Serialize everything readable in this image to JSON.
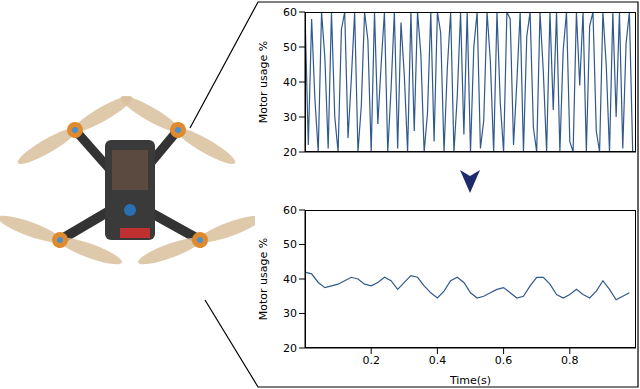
{
  "chart_data": [
    {
      "type": "line",
      "ylabel": "Motor usage %",
      "color": "#30598c",
      "x": [
        0,
        0.01,
        0.02,
        0.03,
        0.04,
        0.05,
        0.06,
        0.07,
        0.08,
        0.09,
        0.1,
        0.11,
        0.12,
        0.13,
        0.14,
        0.15,
        0.16,
        0.17,
        0.18,
        0.19,
        0.2,
        0.21,
        0.22,
        0.23,
        0.24,
        0.25,
        0.26,
        0.27,
        0.28,
        0.29,
        0.3,
        0.31,
        0.32,
        0.33,
        0.34,
        0.35,
        0.36,
        0.37,
        0.38,
        0.39,
        0.4,
        0.41,
        0.42,
        0.43,
        0.44,
        0.45,
        0.46,
        0.47,
        0.48,
        0.49,
        0.5,
        0.51,
        0.52,
        0.53,
        0.54,
        0.55,
        0.56,
        0.57,
        0.58,
        0.59,
        0.6,
        0.61,
        0.62,
        0.63,
        0.64,
        0.65,
        0.66,
        0.67,
        0.68,
        0.69,
        0.7,
        0.71,
        0.72,
        0.73,
        0.74,
        0.75,
        0.76,
        0.77,
        0.78,
        0.79,
        0.8,
        0.81,
        0.82,
        0.83,
        0.84,
        0.85,
        0.86,
        0.87,
        0.88,
        0.89,
        0.9,
        0.91,
        0.92,
        0.93,
        0.94,
        0.95,
        0.96,
        0.97,
        0.98,
        0.99
      ],
      "values": [
        60,
        22,
        58,
        35,
        20,
        60,
        47,
        21,
        60,
        30,
        20,
        55,
        60,
        24,
        41,
        60,
        20,
        33,
        60,
        52,
        20,
        60,
        28,
        45,
        60,
        20,
        38,
        60,
        21,
        57,
        42,
        20,
        60,
        26,
        60,
        48,
        20,
        31,
        60,
        23,
        60,
        54,
        20,
        44,
        60,
        20,
        36,
        60,
        25,
        60,
        20,
        50,
        60,
        21,
        29,
        60,
        46,
        20,
        60,
        34,
        20,
        60,
        58,
        22,
        40,
        60,
        20,
        53,
        60,
        27,
        20,
        60,
        43,
        20,
        60,
        32,
        60,
        20,
        49,
        60,
        23,
        20,
        60,
        39,
        60,
        20,
        56,
        60,
        26,
        20,
        60,
        45,
        20,
        60,
        30,
        60,
        21,
        51,
        60,
        20
      ],
      "xlim": [
        0,
        1
      ],
      "ylim": [
        20,
        60
      ],
      "yticks": [
        20,
        30,
        40,
        50,
        60
      ],
      "tick_labels": "y"
    },
    {
      "type": "line",
      "ylabel": "Motor usage %",
      "xlabel": "Time(s)",
      "color": "#30598c",
      "x": [
        0,
        0.02,
        0.04,
        0.06,
        0.08,
        0.1,
        0.12,
        0.14,
        0.16,
        0.18,
        0.2,
        0.22,
        0.24,
        0.26,
        0.28,
        0.3,
        0.32,
        0.34,
        0.36,
        0.38,
        0.4,
        0.42,
        0.44,
        0.46,
        0.48,
        0.5,
        0.52,
        0.54,
        0.56,
        0.58,
        0.6,
        0.62,
        0.64,
        0.66,
        0.68,
        0.7,
        0.72,
        0.74,
        0.76,
        0.78,
        0.8,
        0.82,
        0.84,
        0.86,
        0.88,
        0.9,
        0.92,
        0.94,
        0.96,
        0.98
      ],
      "values": [
        42,
        41.5,
        39,
        37.5,
        38,
        38.5,
        39.5,
        40.5,
        40,
        38.5,
        38,
        39,
        40.5,
        39.5,
        37,
        39,
        41,
        40.5,
        38,
        36,
        34.5,
        36.5,
        39.5,
        40.5,
        39,
        36,
        34.5,
        35,
        36,
        37,
        37.5,
        36,
        34.5,
        35,
        38,
        40.5,
        40.5,
        38.5,
        35.5,
        34.5,
        35.5,
        37,
        35.5,
        34.5,
        36.5,
        39.5,
        37,
        34,
        35,
        36
      ],
      "xlim": [
        0,
        1
      ],
      "ylim": [
        20,
        60
      ],
      "yticks": [
        20,
        30,
        40,
        50,
        60
      ],
      "xticks": [
        0.2,
        0.4,
        0.6,
        0.8
      ]
    }
  ]
}
